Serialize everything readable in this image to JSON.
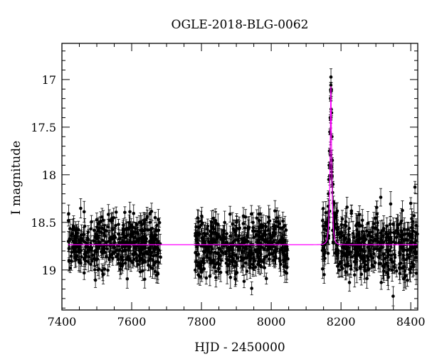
{
  "chart_data": {
    "type": "scatter",
    "title": "OGLE-2018-BLG-0062",
    "xlabel": "HJD - 2450000",
    "ylabel": "I magnitude",
    "xlim": [
      7400,
      8420
    ],
    "ylim": [
      19.42,
      16.62
    ],
    "y_inverted": true,
    "grid": false,
    "x_ticks": [
      7400,
      7600,
      7800,
      8000,
      8200,
      8400
    ],
    "y_ticks": [
      17,
      17.5,
      18,
      18.5,
      19
    ],
    "colors": {
      "data": "#000000",
      "model": "#ff00ff"
    },
    "series": [
      {
        "kind": "observations",
        "seasons": [
          {
            "x_start": 7418,
            "x_end": 7683,
            "baseline_mag": 18.73,
            "scatter_mag": 0.15,
            "error_mag": 0.08
          },
          {
            "x_start": 7782,
            "x_end": 8048,
            "baseline_mag": 18.75,
            "scatter_mag": 0.15,
            "error_mag": 0.09
          },
          {
            "x_start": 8146,
            "x_end": 8420,
            "baseline_mag": 18.76,
            "scatter_mag": 0.17,
            "error_mag": 0.1
          }
        ],
        "peak_points": [
          {
            "x": 8162,
            "y": 18.5
          },
          {
            "x": 8164,
            "y": 18.2
          },
          {
            "x": 8165,
            "y": 18.05
          },
          {
            "x": 8166,
            "y": 17.9
          },
          {
            "x": 8167,
            "y": 17.75
          },
          {
            "x": 8168,
            "y": 17.55
          },
          {
            "x": 8169,
            "y": 17.4
          },
          {
            "x": 8170,
            "y": 17.2
          },
          {
            "x": 8171,
            "y": 17.06
          },
          {
            "x": 8172,
            "y": 17.12
          },
          {
            "x": 8173,
            "y": 17.35
          },
          {
            "x": 8174,
            "y": 17.6
          },
          {
            "x": 8175,
            "y": 17.85
          },
          {
            "x": 8177,
            "y": 18.1
          },
          {
            "x": 8180,
            "y": 18.3
          },
          {
            "x": 8184,
            "y": 18.45
          },
          {
            "x": 8190,
            "y": 18.55
          }
        ],
        "outliers": [
          {
            "x": 8412,
            "y": 18.13
          },
          {
            "x": 8400,
            "y": 18.3
          },
          {
            "x": 8230,
            "y": 18.38
          }
        ]
      },
      {
        "kind": "model",
        "baseline_mag": 18.735,
        "peak_mag": 17.07,
        "t0": 8171,
        "tE": 5.5,
        "u0": 0.22
      }
    ]
  }
}
